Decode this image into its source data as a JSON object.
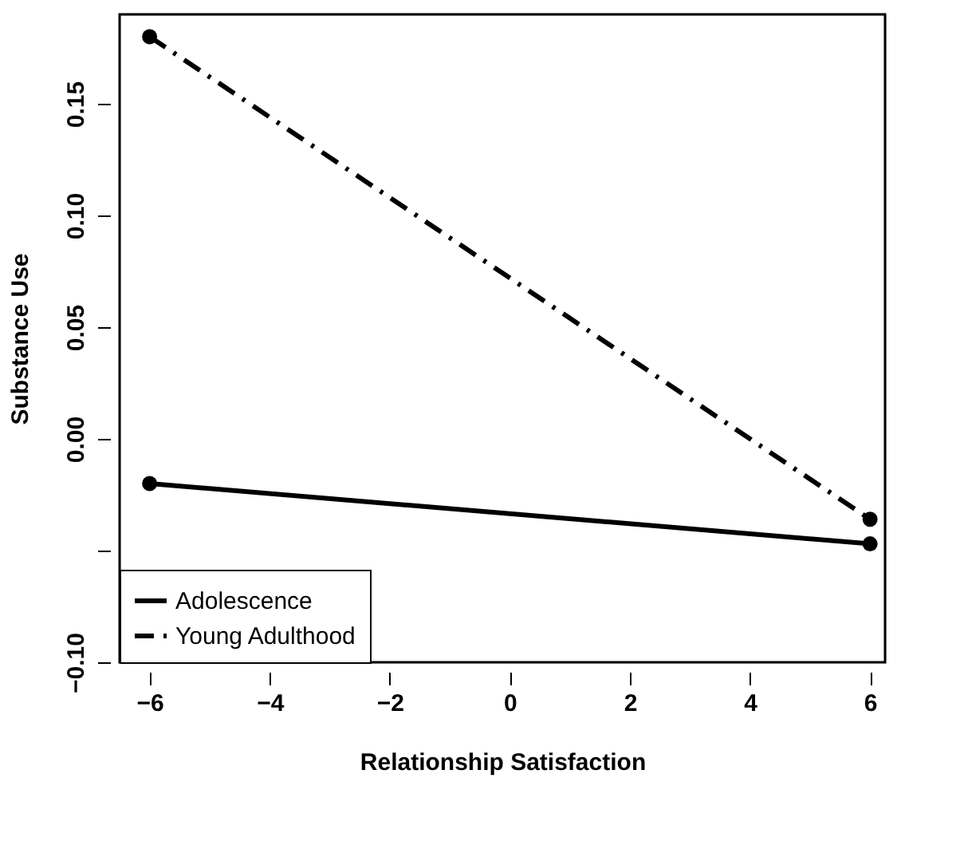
{
  "chart_data": {
    "type": "line",
    "xlabel": "Relationship Satisfaction",
    "ylabel": "Substance Use",
    "x": [
      -6,
      6
    ],
    "series": [
      {
        "name": "Adolescence",
        "color": "#000000",
        "values": [
          -0.02,
          -0.047
        ],
        "line_style": "solid"
      },
      {
        "name": "Young Adulthood",
        "color": "#000000",
        "values": [
          0.18,
          -0.036
        ],
        "line_style": "dashed"
      }
    ],
    "xlim": [
      -6.5,
      6.25
    ],
    "ylim": [
      -0.1,
      0.19
    ],
    "xticks": [
      -6,
      -4,
      -2,
      0,
      2,
      4,
      6
    ],
    "yticks": [
      {
        "value": -0.1,
        "label": "−0.10"
      },
      {
        "value": -0.05,
        "label": null
      },
      {
        "value": 0,
        "label": "0.00"
      },
      {
        "value": 0.05,
        "label": "0.05"
      },
      {
        "value": 0.1,
        "label": "0.10"
      },
      {
        "value": 0.15,
        "label": "0.15"
      }
    ],
    "marker": "circle",
    "grid": false,
    "legend": "bottom left"
  }
}
